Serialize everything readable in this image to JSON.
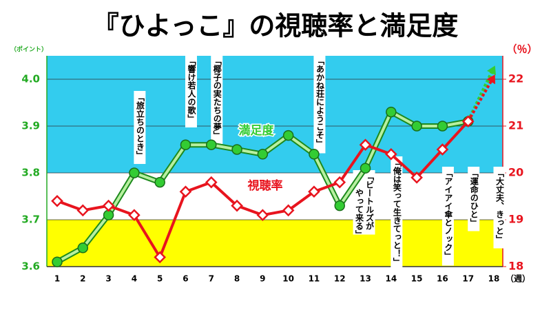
{
  "chart_data": {
    "type": "line",
    "title": "『ひよっこ』の視聴率と満足度",
    "y_label": "（ポイント）",
    "y2_label": "（％）",
    "x_label": "（週）",
    "categories": [
      "1",
      "2",
      "3",
      "4",
      "5",
      "6",
      "7",
      "8",
      "9",
      "10",
      "11",
      "12",
      "13",
      "14",
      "15",
      "16",
      "17",
      "18"
    ],
    "ylim": [
      3.6,
      4.05
    ],
    "yticks": [
      {
        "value": 3.6,
        "label": "3.6"
      },
      {
        "value": 3.7,
        "label": "3.7"
      },
      {
        "value": 3.8,
        "label": "3.8"
      },
      {
        "value": 3.9,
        "label": "3.9"
      },
      {
        "value": 4.0,
        "label": "4.0"
      }
    ],
    "y2lim": [
      18,
      22.5
    ],
    "y2ticks": [
      18,
      19,
      20,
      21,
      22
    ],
    "bands": [
      {
        "from": 3.8,
        "to": 4.05,
        "color": "#33ccee"
      },
      {
        "from": 3.6,
        "to": 3.7,
        "color": "#ffff00"
      }
    ],
    "series": [
      {
        "name": "満足度",
        "color": "#33cc33",
        "values": [
          3.61,
          3.64,
          3.71,
          3.8,
          3.78,
          3.86,
          3.86,
          3.85,
          3.84,
          3.88,
          3.84,
          3.73,
          3.81,
          3.93,
          3.9,
          3.9,
          3.91,
          null
        ]
      },
      {
        "name": "視聴率",
        "color": "#e8141e",
        "axis": "y2",
        "values": [
          19.4,
          19.2,
          19.3,
          19.1,
          18.2,
          19.6,
          19.8,
          19.3,
          19.1,
          19.2,
          19.6,
          19.8,
          20.6,
          20.4,
          19.9,
          20.5,
          21.1,
          null
        ]
      }
    ],
    "annotations": [
      {
        "week": 4,
        "lines": [
          "「旅立ちのとき」"
        ]
      },
      {
        "week": 6,
        "lines": [
          "「響け若人の歌」"
        ]
      },
      {
        "week": 7,
        "lines": [
          "「椰子の実たちの夢」"
        ]
      },
      {
        "week": 11,
        "lines": [
          "「あかね荘にようこそ」"
        ]
      },
      {
        "week": 13,
        "lines": [
          "「ビートルズが",
          "やって来る」"
        ]
      },
      {
        "week": 14,
        "lines": [
          "「俺は笑って生きてっと！」"
        ]
      },
      {
        "week": 16,
        "lines": [
          "「アイアイ傘とノック」"
        ]
      },
      {
        "week": 17,
        "lines": [
          "「運命のひと」"
        ]
      },
      {
        "week": 18,
        "lines": [
          "「大丈夫、きっと」"
        ]
      }
    ]
  }
}
